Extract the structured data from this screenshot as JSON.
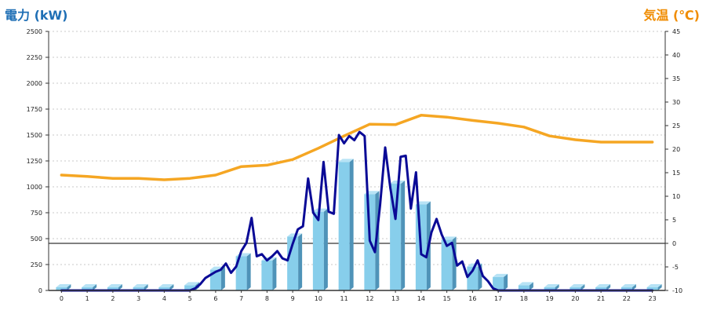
{
  "chart_data": {
    "type": "bar",
    "title_left": "電力 (kW)",
    "title_right": "気温 (℃)",
    "x_ticks": [
      "0",
      "1",
      "2",
      "3",
      "4",
      "5",
      "6",
      "7",
      "8",
      "9",
      "10",
      "11",
      "12",
      "13",
      "14",
      "15",
      "16",
      "17",
      "18",
      "19",
      "20",
      "21",
      "22",
      "23"
    ],
    "y_left_ticks": [
      "0",
      "250",
      "500",
      "750",
      "1000",
      "1250",
      "1500",
      "1750",
      "2000",
      "2250",
      "2500"
    ],
    "y_right_ticks": [
      "-10",
      "-5",
      "0",
      "5",
      "10",
      "15",
      "20",
      "25",
      "30",
      "35",
      "40",
      "45"
    ],
    "ylim_left": [
      0,
      2500
    ],
    "ylim_right": [
      -10,
      45
    ],
    "grid": true,
    "series": [
      {
        "kind": "bar",
        "axis": "left",
        "color": "#87ceeb",
        "values": [
          30,
          30,
          30,
          30,
          30,
          50,
          200,
          330,
          290,
          520,
          760,
          1240,
          930,
          1030,
          830,
          490,
          230,
          130,
          50,
          30,
          30,
          30,
          30,
          30
        ]
      },
      {
        "kind": "line",
        "axis": "left",
        "color": "#0a0a96",
        "x": [
          0,
          0.5,
          1,
          1.5,
          2,
          2.5,
          3,
          3.5,
          4,
          4.5,
          5,
          5.2,
          5.4,
          5.6,
          5.8,
          6,
          6.2,
          6.4,
          6.6,
          6.8,
          7,
          7.2,
          7.4,
          7.6,
          7.8,
          8,
          8.2,
          8.4,
          8.6,
          8.8,
          9,
          9.2,
          9.4,
          9.6,
          9.8,
          10,
          10.2,
          10.4,
          10.6,
          10.8,
          11,
          11.2,
          11.4,
          11.6,
          11.8,
          12,
          12.2,
          12.4,
          12.6,
          12.8,
          13,
          13.2,
          13.4,
          13.6,
          13.8,
          14,
          14.2,
          14.4,
          14.6,
          14.8,
          15,
          15.2,
          15.4,
          15.6,
          15.8,
          16,
          16.2,
          16.4,
          16.6,
          16.8,
          17,
          17.2,
          17.4,
          17.6,
          17.8,
          18,
          18.5,
          19,
          19.5,
          20,
          20.5,
          21,
          21.5,
          22,
          22.5,
          23
        ],
        "values": [
          0,
          0,
          0,
          0,
          0,
          0,
          0,
          0,
          0,
          0,
          0,
          20,
          60,
          120,
          150,
          180,
          200,
          260,
          170,
          230,
          380,
          460,
          700,
          330,
          350,
          290,
          330,
          380,
          310,
          290,
          450,
          590,
          620,
          1080,
          750,
          680,
          1240,
          760,
          740,
          1500,
          1420,
          1490,
          1450,
          1530,
          1490,
          480,
          370,
          820,
          1380,
          990,
          690,
          1290,
          1300,
          790,
          1140,
          350,
          320,
          560,
          690,
          540,
          430,
          460,
          240,
          280,
          130,
          190,
          290,
          140,
          90,
          20,
          0,
          0,
          0,
          0,
          0,
          0,
          0,
          0,
          0,
          0,
          0,
          0,
          0,
          0,
          0,
          0
        ],
        "values_note_disabled": ""
      },
      {
        "kind": "line",
        "axis": "right",
        "color": "#f5a623",
        "x": [
          0,
          1,
          2,
          3,
          4,
          5,
          6,
          7,
          8,
          9,
          10,
          11,
          12,
          13,
          14,
          15,
          16,
          17,
          18,
          19,
          20,
          21,
          22,
          23
        ],
        "values": [
          14.5,
          14.2,
          13.8,
          13.8,
          13.5,
          13.8,
          14.5,
          16.3,
          16.6,
          17.8,
          20.2,
          22.8,
          25.3,
          25.2,
          27.2,
          26.8,
          26.1,
          25.5,
          24.7,
          22.8,
          22.0,
          21.5,
          21.5,
          21.5
        ]
      }
    ]
  }
}
